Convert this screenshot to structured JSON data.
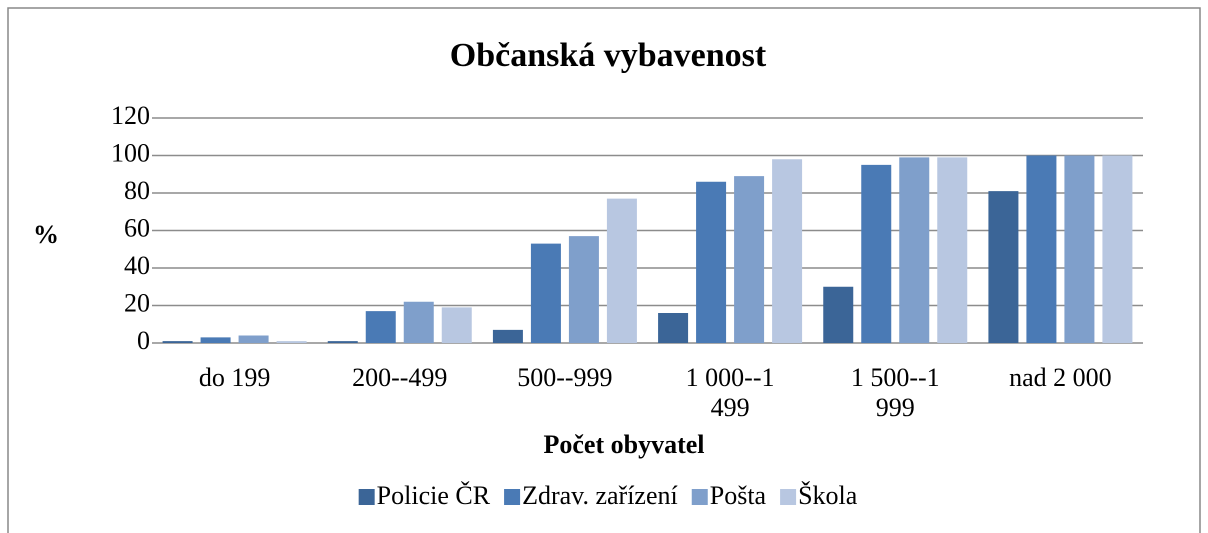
{
  "chart_data": {
    "type": "bar",
    "title": "Občanská vybavenost",
    "y_label": "%",
    "x_label": "Počet obyvatel",
    "categories": [
      "do 199",
      "200--499",
      "500--999",
      "1 000--1 499",
      "1 500--1 999",
      "nad 2 000"
    ],
    "series": [
      {
        "name": "Policie ČR",
        "color": "#3b6597",
        "values": [
          1,
          1,
          7,
          16,
          30,
          81
        ]
      },
      {
        "name": "Zdrav. zařízení",
        "color": "#4a7ab5",
        "values": [
          3,
          17,
          53,
          86,
          95,
          100
        ]
      },
      {
        "name": "Pošta",
        "color": "#7f9fcb",
        "values": [
          4,
          22,
          57,
          89,
          99,
          100
        ]
      },
      {
        "name": "Škola",
        "color": "#b8c7e1",
        "values": [
          1,
          19,
          77,
          98,
          99,
          100
        ]
      }
    ],
    "ylim": [
      0,
      120
    ],
    "yticks": [
      0,
      20,
      40,
      60,
      80,
      100,
      120
    ],
    "grid": true,
    "legend": "bottom"
  }
}
